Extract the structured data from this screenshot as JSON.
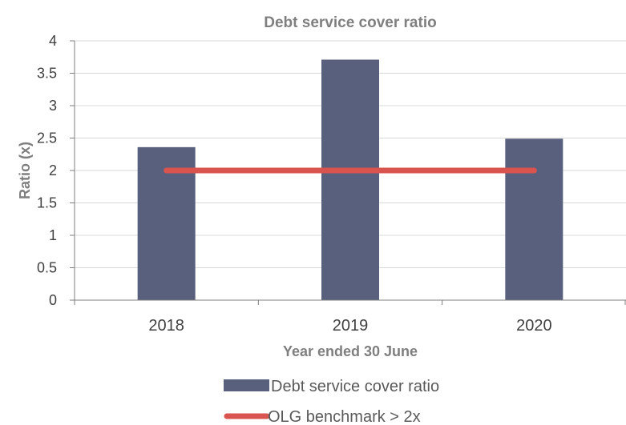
{
  "chart_data": {
    "type": "bar",
    "title": "Debt service cover ratio",
    "xlabel": "Year ended 30 June",
    "ylabel": "Ratio (x)",
    "categories": [
      "2018",
      "2019",
      "2020"
    ],
    "ylim": [
      0,
      4
    ],
    "yticks": [
      0,
      0.5,
      1,
      1.5,
      2,
      2.5,
      3,
      3.5,
      4
    ],
    "ytick_labels": [
      "0",
      "0.5",
      "1",
      "1.5",
      "2",
      "2.5",
      "3",
      "3.5",
      "4"
    ],
    "grid": true,
    "legend_position": "bottom",
    "series": [
      {
        "name": "Debt service cover ratio",
        "kind": "bar",
        "color": "#59607e",
        "values": [
          2.36,
          3.71,
          2.49
        ]
      },
      {
        "name": "OLG benchmark > 2x",
        "kind": "line",
        "color": "#d9534f",
        "values": [
          2,
          2,
          2
        ]
      }
    ]
  }
}
